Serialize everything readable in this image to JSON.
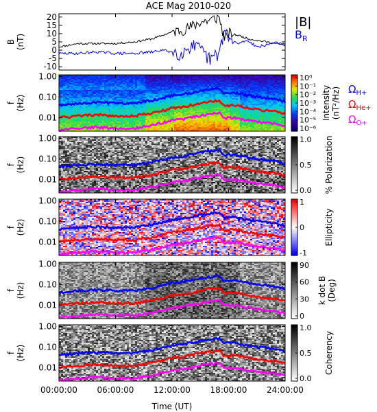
{
  "title": "ACE Mag 2010-020",
  "xlabel": "Time (UT)",
  "x_ticks": [
    "00:00:00",
    "06:00:00",
    "12:00:00",
    "18:00:00",
    "24:00:00"
  ],
  "colors": {
    "b_total": "#000000",
    "b_r": "#0000ff",
    "omega_h": "#0000ff",
    "omega_he": "#ff0000",
    "omega_o": "#ff00ff"
  },
  "chart_data": [
    {
      "type": "line",
      "ylabel": "B (nT)",
      "ylim": [
        -12,
        22
      ],
      "yticks": [
        "20",
        "15",
        "10",
        "5",
        "0",
        "-5",
        "-10"
      ],
      "x_hours": [
        0,
        2,
        4,
        6,
        8,
        10,
        11,
        12,
        13,
        14,
        15,
        16,
        17,
        17.5,
        18,
        19,
        20,
        21,
        22,
        23,
        24
      ],
      "series": [
        {
          "name": "|B|",
          "values": [
            2,
            4,
            4,
            4,
            5,
            7,
            9,
            11,
            12,
            14,
            17,
            18,
            20,
            8,
            10,
            9,
            7,
            6,
            5,
            4,
            3
          ]
        },
        {
          "name": "B_R",
          "values": [
            -2,
            -2,
            -1,
            -2,
            -2,
            -1,
            0,
            -1,
            -2,
            3,
            0,
            -6,
            -2,
            12,
            6,
            4,
            6,
            2,
            3,
            5,
            3
          ]
        }
      ],
      "legend": [
        "|B|",
        "B_R"
      ]
    },
    {
      "type": "heatmap",
      "ylabel": "f (Hz)",
      "yticks": [
        "1.00",
        "0.10",
        "0.01"
      ],
      "colorbar_label": "Intensity (nT²/Hz)",
      "colorbar_ticks": [
        "10⁰",
        "10⁻¹",
        "10⁻²",
        "10⁻³",
        "10⁻⁴",
        "10⁻⁵",
        "10⁻⁶"
      ],
      "legend": [
        "ΩH+",
        "ΩHe+",
        "ΩO+"
      ]
    },
    {
      "type": "heatmap",
      "ylabel": "f (Hz)",
      "yticks": [
        "1.00",
        "0.10",
        "0.01"
      ],
      "colorbar_label": "% Polarization",
      "colorbar_ticks": [
        "1.0",
        "0.5",
        "0.0"
      ]
    },
    {
      "type": "heatmap",
      "ylabel": "f (Hz)",
      "yticks": [
        "1.00",
        "0.10",
        "0.01"
      ],
      "colorbar_label": "Ellipticity",
      "colorbar_ticks": [
        "1",
        "0",
        "-1"
      ]
    },
    {
      "type": "heatmap",
      "ylabel": "f (Hz)",
      "yticks": [
        "1.00",
        "0.10",
        "0.01"
      ],
      "colorbar_label": "k dot B (Deg)",
      "colorbar_ticks": [
        "90",
        "60",
        "30",
        "0"
      ]
    },
    {
      "type": "heatmap",
      "ylabel": "f (Hz)",
      "yticks": [
        "1.00",
        "0.10",
        "0.01"
      ],
      "colorbar_label": "Coherency",
      "colorbar_ticks": [
        "1.0",
        "0.5",
        "0.0"
      ]
    }
  ],
  "gyrofrequency": {
    "x_hours": [
      0,
      2,
      4,
      6,
      8,
      10,
      11,
      12,
      13,
      14,
      15,
      16,
      17,
      17.5,
      18,
      19,
      20,
      21,
      22,
      23,
      24
    ],
    "omega_h_hz": [
      0.04,
      0.05,
      0.055,
      0.05,
      0.05,
      0.07,
      0.09,
      0.12,
      0.13,
      0.16,
      0.2,
      0.24,
      0.27,
      0.14,
      0.16,
      0.15,
      0.12,
      0.1,
      0.09,
      0.08,
      0.06
    ],
    "omega_he_hz": [
      0.01,
      0.012,
      0.014,
      0.012,
      0.012,
      0.017,
      0.022,
      0.03,
      0.032,
      0.04,
      0.05,
      0.06,
      0.068,
      0.035,
      0.04,
      0.038,
      0.03,
      0.025,
      0.022,
      0.02,
      0.015
    ],
    "omega_o_hz": [
      0.0025,
      0.003,
      0.0035,
      0.003,
      0.003,
      0.0043,
      0.0055,
      0.0075,
      0.008,
      0.01,
      0.0125,
      0.015,
      0.017,
      0.009,
      0.01,
      0.0095,
      0.0075,
      0.0063,
      0.0056,
      0.005,
      0.0038
    ]
  }
}
